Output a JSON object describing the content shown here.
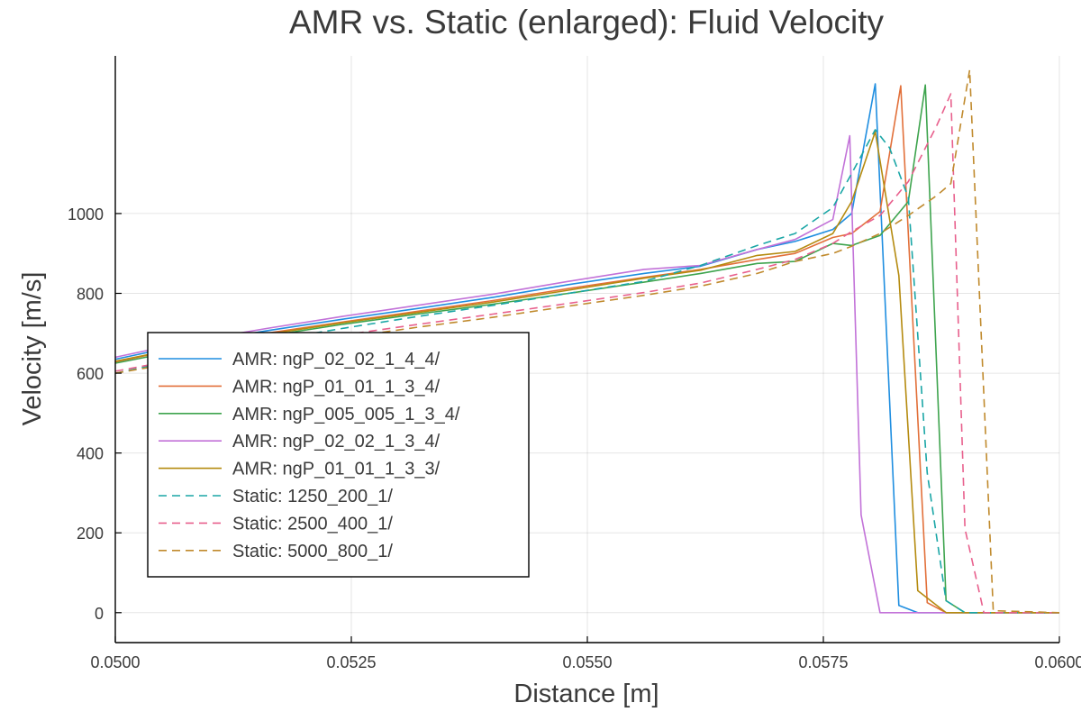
{
  "chart_data": {
    "type": "line",
    "title": "AMR vs. Static (enlarged): Fluid Velocity",
    "xlabel": "Distance [m]",
    "ylabel": "Velocity [m/s]",
    "xlim": [
      0.05,
      0.06
    ],
    "ylim": [
      -75,
      1395
    ],
    "xticks": [
      0.05,
      0.0525,
      0.055,
      0.0575,
      0.06
    ],
    "xtick_labels": [
      "0.0500",
      "0.0525",
      "0.0550",
      "0.0575",
      "0.0600"
    ],
    "yticks": [
      0,
      200,
      400,
      600,
      800,
      1000
    ],
    "ytick_labels": [
      "0",
      "200",
      "400",
      "600",
      "800",
      "1000"
    ],
    "grid": true,
    "legend_position": "left-center",
    "series": [
      {
        "name": "AMR: ngP_02_02_1_4_4/",
        "color": "#1f8ee0",
        "dash": "solid",
        "x": [
          0.05,
          0.0508,
          0.0516,
          0.0524,
          0.0532,
          0.054,
          0.0548,
          0.0556,
          0.0562,
          0.0568,
          0.0572,
          0.0576,
          0.0578,
          0.05805,
          0.0583,
          0.0585,
          0.0588,
          0.059,
          0.06
        ],
        "y": [
          635,
          675,
          706,
          735,
          762,
          790,
          822,
          850,
          868,
          910,
          930,
          960,
          1000,
          1325,
          18,
          0,
          0,
          0,
          0
        ]
      },
      {
        "name": "AMR: ngP_01_01_1_3_4/",
        "color": "#e2703a",
        "dash": "solid",
        "x": [
          0.05,
          0.0508,
          0.0516,
          0.0524,
          0.0532,
          0.054,
          0.0548,
          0.0556,
          0.0562,
          0.0568,
          0.0572,
          0.0576,
          0.0578,
          0.0581,
          0.05832,
          0.0586,
          0.0588,
          0.059,
          0.06
        ],
        "y": [
          628,
          668,
          700,
          728,
          755,
          782,
          812,
          840,
          860,
          885,
          900,
          940,
          950,
          1005,
          1320,
          25,
          0,
          0,
          0
        ]
      },
      {
        "name": "AMR: ngP_005_005_1_3_4/",
        "color": "#3ea44e",
        "dash": "solid",
        "x": [
          0.05,
          0.0508,
          0.0516,
          0.0524,
          0.0532,
          0.054,
          0.0548,
          0.0556,
          0.0562,
          0.0568,
          0.0572,
          0.0576,
          0.0578,
          0.0581,
          0.0584,
          0.05858,
          0.0588,
          0.059,
          0.06
        ],
        "y": [
          625,
          662,
          693,
          722,
          748,
          773,
          800,
          828,
          850,
          875,
          880,
          925,
          920,
          945,
          1030,
          1322,
          30,
          0,
          0
        ]
      },
      {
        "name": "AMR: ngP_02_02_1_3_4/",
        "color": "#c272d8",
        "dash": "solid",
        "x": [
          0.05,
          0.0508,
          0.0516,
          0.0524,
          0.0532,
          0.054,
          0.0548,
          0.0556,
          0.0562,
          0.0568,
          0.0572,
          0.0576,
          0.05778,
          0.0579,
          0.0581,
          0.0585,
          0.06
        ],
        "y": [
          640,
          680,
          712,
          742,
          770,
          798,
          830,
          860,
          870,
          910,
          935,
          985,
          1195,
          245,
          0,
          0,
          0
        ]
      },
      {
        "name": "AMR: ngP_01_01_1_3_3/",
        "color": "#b58b10",
        "dash": "solid",
        "x": [
          0.05,
          0.0508,
          0.0516,
          0.0524,
          0.0532,
          0.054,
          0.0548,
          0.0556,
          0.0562,
          0.0568,
          0.0572,
          0.0576,
          0.0578,
          0.05805,
          0.0583,
          0.0585,
          0.0588,
          0.06
        ],
        "y": [
          630,
          668,
          697,
          726,
          752,
          778,
          808,
          838,
          858,
          895,
          905,
          950,
          1030,
          1205,
          845,
          55,
          0,
          0
        ]
      },
      {
        "name": "Static: 1250_200_1/",
        "color": "#1aa6a6",
        "dash": "dashed",
        "x": [
          0.05,
          0.0508,
          0.0516,
          0.0524,
          0.0532,
          0.054,
          0.0548,
          0.0556,
          0.0562,
          0.0568,
          0.0572,
          0.0576,
          0.0578,
          0.05805,
          0.0582,
          0.0584,
          0.0586,
          0.0588,
          0.059,
          0.06
        ],
        "y": [
          600,
          640,
          680,
          712,
          742,
          770,
          800,
          830,
          870,
          920,
          950,
          1015,
          1100,
          1210,
          1165,
          1040,
          350,
          30,
          0,
          0
        ]
      },
      {
        "name": "Static: 2500_400_1/",
        "color": "#e8608d",
        "dash": "dashed",
        "x": [
          0.05,
          0.0508,
          0.0516,
          0.0524,
          0.0532,
          0.054,
          0.0548,
          0.0556,
          0.0562,
          0.0568,
          0.0572,
          0.0576,
          0.0578,
          0.0581,
          0.0584,
          0.0587,
          0.05885,
          0.059,
          0.0592,
          0.06
        ],
        "y": [
          605,
          640,
          668,
          695,
          722,
          748,
          775,
          802,
          826,
          860,
          885,
          925,
          955,
          995,
          1080,
          1220,
          1300,
          210,
          0,
          0
        ]
      },
      {
        "name": "Static: 5000_800_1/",
        "color": "#c08a2d",
        "dash": "dashed",
        "x": [
          0.05,
          0.0508,
          0.0516,
          0.0524,
          0.0532,
          0.054,
          0.0548,
          0.0556,
          0.0562,
          0.0568,
          0.0572,
          0.0576,
          0.0578,
          0.0581,
          0.0584,
          0.0587,
          0.05885,
          0.05905,
          0.0593,
          0.06
        ],
        "y": [
          600,
          632,
          660,
          688,
          715,
          740,
          768,
          795,
          818,
          850,
          880,
          900,
          918,
          950,
          995,
          1045,
          1075,
          1360,
          5,
          0
        ]
      }
    ]
  }
}
